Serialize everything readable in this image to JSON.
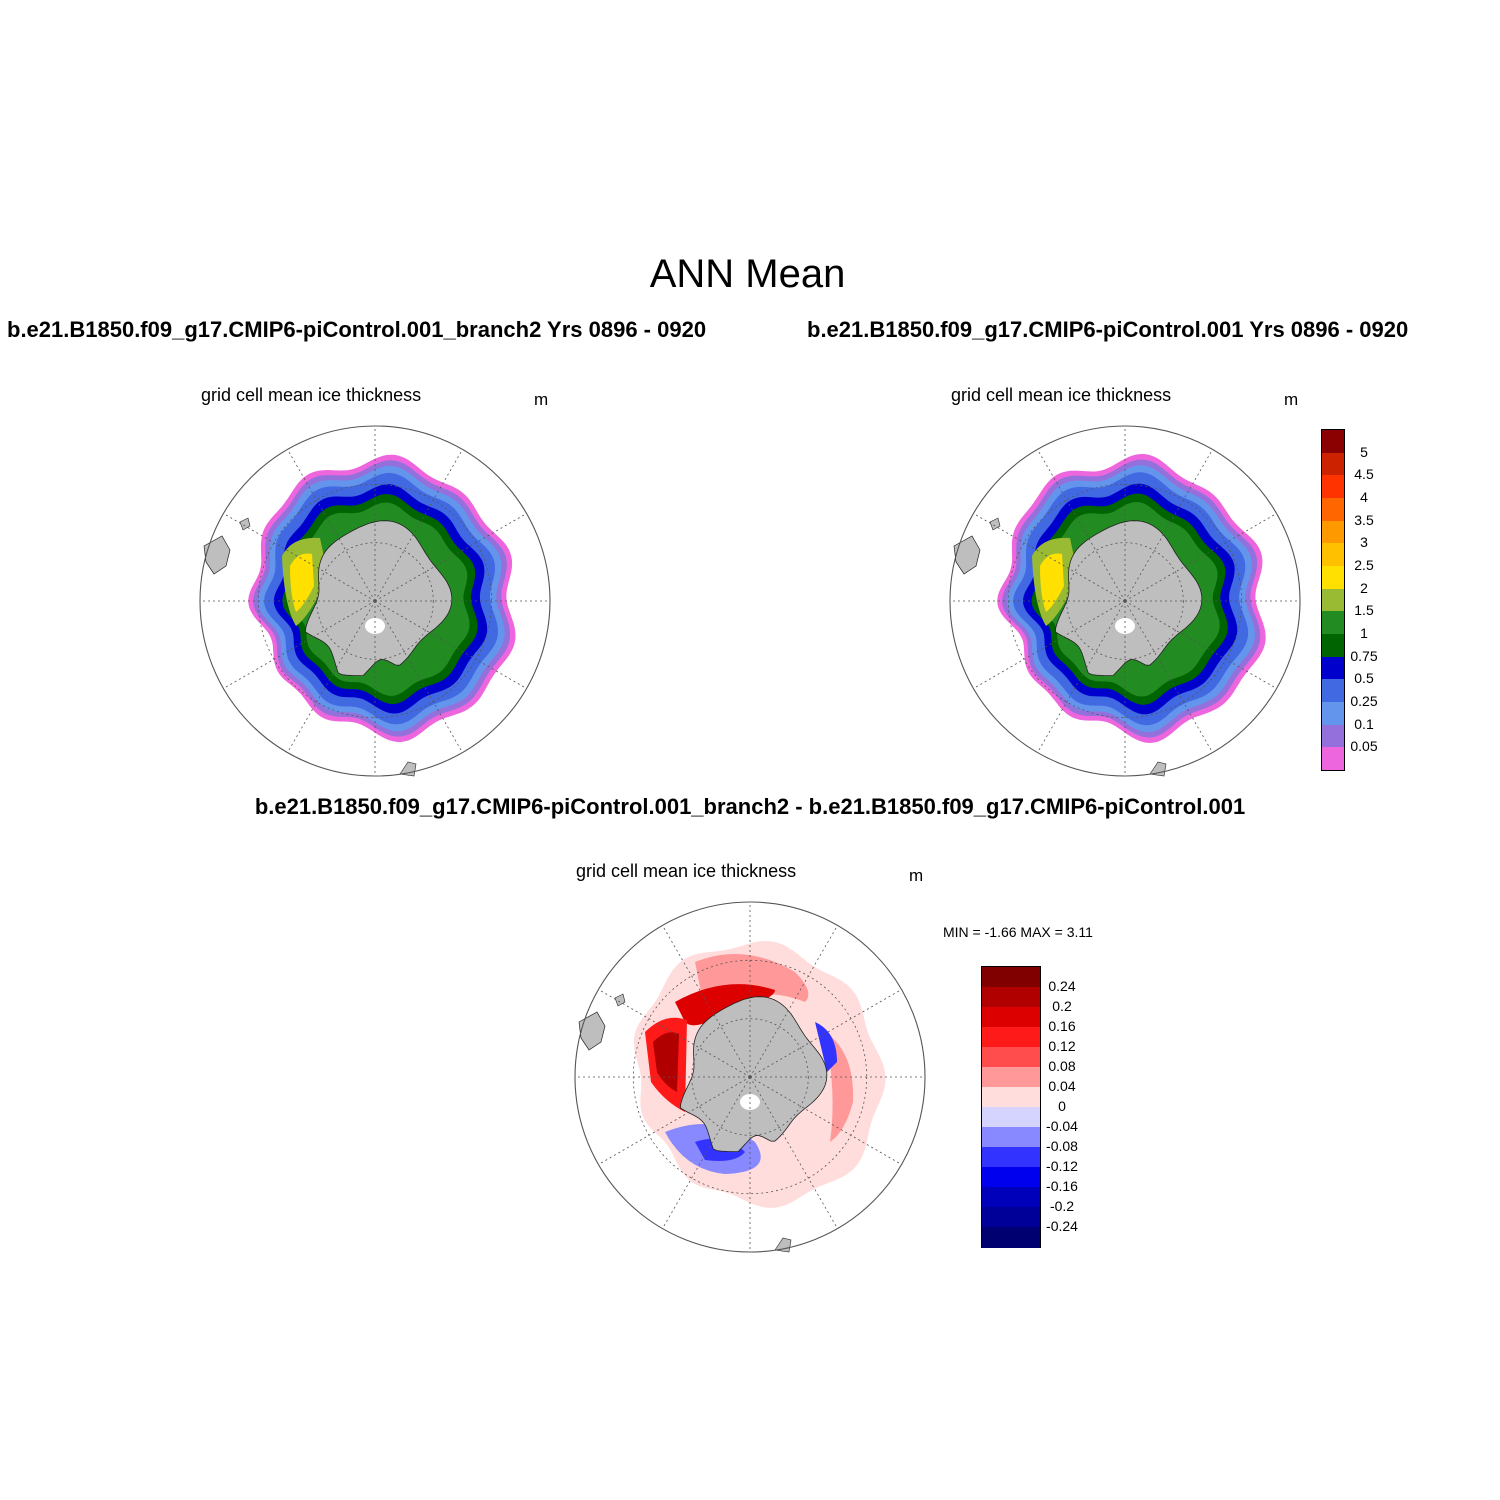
{
  "main_title": "ANN Mean",
  "panels": {
    "left": {
      "title": "b.e21.B1850.f09_g17.CMIP6-piControl.001_branch2  Yrs 0896 - 0920",
      "variable": "grid cell mean ice thickness",
      "units": "m"
    },
    "right": {
      "title": "b.e21.B1850.f09_g17.CMIP6-piControl.001  Yrs 0896 - 0920",
      "variable": "grid cell mean ice thickness",
      "units": "m"
    },
    "diff": {
      "title": "b.e21.B1850.f09_g17.CMIP6-piControl.001_branch2 - b.e21.B1850.f09_g17.CMIP6-piControl.001",
      "variable": "grid cell mean ice thickness",
      "units": "m",
      "minmax": "MIN =  -1.66 MAX =   3.11"
    }
  },
  "thickness_colorbar": {
    "labels": [
      "5",
      "4.5",
      "4",
      "3.5",
      "3",
      "2.5",
      "2",
      "1.5",
      "1",
      "0.75",
      "0.5",
      "0.25",
      "0.1",
      "0.05"
    ],
    "colors": [
      "#8b0000",
      "#cc2200",
      "#ff3300",
      "#ff6600",
      "#ff9900",
      "#ffc000",
      "#ffe000",
      "#99bb33",
      "#228b22",
      "#006400",
      "#0000cd",
      "#4169e1",
      "#6495ed",
      "#9370db",
      "#ee66dd"
    ]
  },
  "diff_colorbar": {
    "labels": [
      "0.24",
      "0.2",
      "0.16",
      "0.12",
      "0.08",
      "0.04",
      "0",
      "-0.04",
      "-0.08",
      "-0.12",
      "-0.16",
      "-0.2",
      "-0.24"
    ],
    "colors": [
      "#800000",
      "#b00000",
      "#dd0000",
      "#ff1a1a",
      "#ff4d4d",
      "#ff9999",
      "#ffdddd",
      "#d4d4ff",
      "#8888ff",
      "#3333ff",
      "#0000ee",
      "#0000bb",
      "#000099",
      "#000070"
    ]
  },
  "colors": {
    "land": "#bebebe",
    "grid": "#555555"
  }
}
